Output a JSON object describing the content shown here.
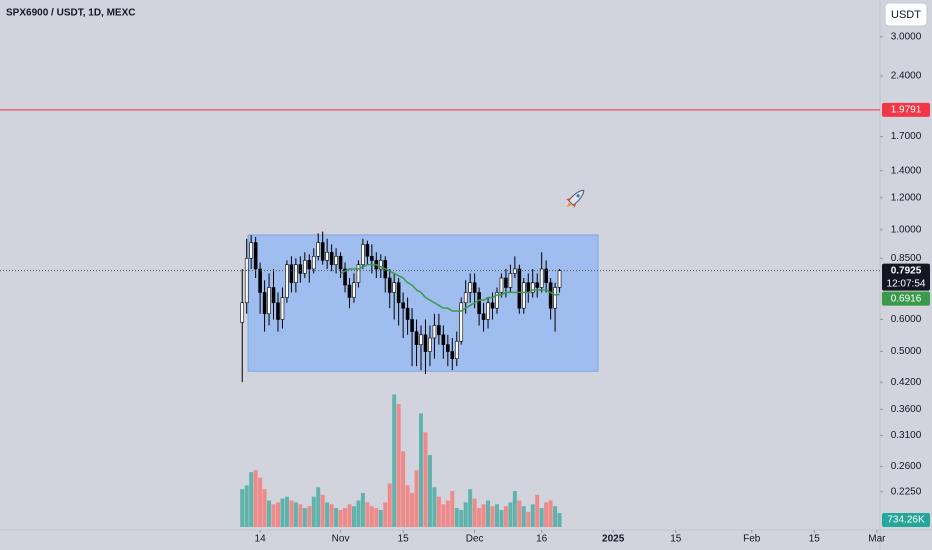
{
  "chart_data": {
    "type": "candlestick",
    "title": "SPX6900 / USDT, 1D, MEXC",
    "currency": "USDT",
    "log_scale": true,
    "background": "#d1d4dc",
    "up_color": "#ffffff",
    "down_color": "#000000",
    "volume_up_color": "#5fb3ac",
    "volume_down_color": "#ee8a8a",
    "xlim": [
      -44.2,
      152.7
    ],
    "xticks": [
      14,
      {
        "value": 32,
        "label": "Nov"
      },
      {
        "value": 46,
        "label": "15"
      },
      {
        "value": 62,
        "label": "Dec"
      },
      {
        "value": 77,
        "label": "16"
      },
      {
        "value": 93,
        "label": "2025"
      },
      {
        "value": 107,
        "label": "15"
      },
      {
        "value": 124,
        "label": "Feb"
      },
      {
        "value": 138,
        "label": "15"
      },
      {
        "value": 152,
        "label": "Mar"
      }
    ],
    "ylim": [
      0.181,
      3.7
    ],
    "yticks": [
      {
        "value": 3,
        "label": "3.0000"
      },
      {
        "value": 2.4,
        "label": "2.4000"
      },
      {
        "value": 1.7,
        "label": "1.7000"
      },
      {
        "value": 1.4,
        "label": "1.4000"
      },
      {
        "value": 1.2,
        "label": "1.2000"
      },
      {
        "value": 1,
        "label": "1.0000"
      },
      {
        "value": 0.85,
        "label": "0.8500"
      },
      {
        "value": 0.6,
        "label": "0.6000"
      },
      {
        "value": 0.5,
        "label": "0.5000"
      },
      {
        "value": 0.42,
        "label": "0.4200"
      },
      {
        "value": 0.36,
        "label": "0.3600"
      },
      {
        "value": 0.31,
        "label": "0.3100"
      },
      {
        "value": 0.26,
        "label": "0.2600"
      },
      {
        "value": 0.225,
        "label": "0.2250"
      }
    ],
    "vlim": [
      0,
      14000000
    ],
    "x": [
      10,
      11,
      12,
      13,
      14,
      15,
      16,
      17,
      18,
      19,
      20,
      21,
      22,
      23,
      24,
      25,
      26,
      27,
      28,
      29,
      30,
      31,
      32,
      33,
      34,
      35,
      36,
      37,
      38,
      39,
      40,
      41,
      42,
      43,
      44,
      45,
      46,
      47,
      48,
      49,
      50,
      51,
      52,
      53,
      54,
      55,
      56,
      57,
      58,
      59,
      60,
      61,
      62,
      63,
      64,
      65,
      66,
      67,
      68,
      69,
      70,
      71,
      72,
      73,
      74,
      75,
      76,
      77,
      78,
      79,
      80,
      81
    ],
    "open": [
      0.59,
      0.66,
      0.85,
      0.93,
      0.8,
      0.7,
      0.62,
      0.72,
      0.66,
      0.6,
      0.68,
      0.82,
      0.74,
      0.82,
      0.78,
      0.84,
      0.8,
      0.86,
      0.93,
      0.84,
      0.88,
      0.82,
      0.86,
      0.8,
      0.73,
      0.68,
      0.74,
      0.82,
      0.92,
      0.86,
      0.84,
      0.8,
      0.84,
      0.76,
      0.7,
      0.74,
      0.66,
      0.64,
      0.6,
      0.56,
      0.52,
      0.55,
      0.5,
      0.54,
      0.58,
      0.55,
      0.52,
      0.5,
      0.48,
      0.53,
      0.66,
      0.7,
      0.74,
      0.7,
      0.62,
      0.6,
      0.66,
      0.64,
      0.7,
      0.76,
      0.72,
      0.78,
      0.8,
      0.64,
      0.74,
      0.7,
      0.74,
      0.72,
      0.8,
      0.74,
      0.64,
      0.72
    ],
    "high": [
      0.8,
      0.95,
      0.97,
      0.96,
      0.83,
      0.75,
      0.78,
      0.8,
      0.7,
      0.72,
      0.84,
      0.86,
      0.85,
      0.86,
      0.88,
      0.87,
      0.9,
      0.98,
      0.99,
      0.95,
      0.92,
      0.9,
      0.88,
      0.83,
      0.76,
      0.78,
      0.84,
      0.95,
      0.94,
      0.92,
      0.88,
      0.87,
      0.86,
      0.8,
      0.78,
      0.76,
      0.7,
      0.68,
      0.64,
      0.6,
      0.58,
      0.6,
      0.58,
      0.62,
      0.62,
      0.58,
      0.55,
      0.54,
      0.56,
      0.68,
      0.75,
      0.78,
      0.78,
      0.72,
      0.66,
      0.68,
      0.7,
      0.72,
      0.78,
      0.8,
      0.82,
      0.86,
      0.82,
      0.76,
      0.78,
      0.8,
      0.78,
      0.88,
      0.84,
      0.76,
      0.74,
      0.8
    ],
    "low": [
      0.42,
      0.62,
      0.8,
      0.76,
      0.62,
      0.56,
      0.58,
      0.6,
      0.56,
      0.57,
      0.66,
      0.7,
      0.7,
      0.74,
      0.76,
      0.74,
      0.78,
      0.84,
      0.82,
      0.8,
      0.79,
      0.78,
      0.76,
      0.7,
      0.64,
      0.66,
      0.72,
      0.8,
      0.82,
      0.78,
      0.76,
      0.76,
      0.7,
      0.64,
      0.6,
      0.58,
      0.54,
      0.55,
      0.46,
      0.46,
      0.45,
      0.44,
      0.46,
      0.48,
      0.52,
      0.48,
      0.46,
      0.45,
      0.46,
      0.52,
      0.62,
      0.66,
      0.64,
      0.58,
      0.56,
      0.57,
      0.6,
      0.62,
      0.68,
      0.68,
      0.7,
      0.76,
      0.62,
      0.62,
      0.66,
      0.68,
      0.68,
      0.7,
      0.7,
      0.6,
      0.56,
      0.7
    ],
    "close": [
      0.66,
      0.85,
      0.93,
      0.8,
      0.7,
      0.62,
      0.72,
      0.66,
      0.6,
      0.68,
      0.82,
      0.74,
      0.82,
      0.78,
      0.84,
      0.8,
      0.86,
      0.93,
      0.84,
      0.88,
      0.82,
      0.86,
      0.8,
      0.73,
      0.68,
      0.74,
      0.82,
      0.92,
      0.86,
      0.84,
      0.8,
      0.84,
      0.76,
      0.7,
      0.74,
      0.66,
      0.64,
      0.6,
      0.56,
      0.52,
      0.55,
      0.5,
      0.54,
      0.58,
      0.55,
      0.52,
      0.5,
      0.48,
      0.53,
      0.66,
      0.7,
      0.74,
      0.7,
      0.62,
      0.6,
      0.66,
      0.64,
      0.7,
      0.76,
      0.72,
      0.78,
      0.8,
      0.64,
      0.74,
      0.7,
      0.74,
      0.72,
      0.8,
      0.74,
      0.64,
      0.72,
      0.7925
    ],
    "volume": [
      2000000,
      2200000,
      2900000,
      3000000,
      2600000,
      2000000,
      1400000,
      1200000,
      1300000,
      1500000,
      1600000,
      1400000,
      1300000,
      1200000,
      1000000,
      1100000,
      1600000,
      2100000,
      1700000,
      1300000,
      1200000,
      1000000,
      900000,
      1000000,
      1200000,
      1100000,
      1400000,
      1800000,
      1300000,
      1100000,
      1000000,
      900000,
      1300000,
      2300000,
      7000000,
      6500000,
      4000000,
      2200000,
      1800000,
      3000000,
      6000000,
      5000000,
      3800000,
      2100000,
      1600000,
      1200000,
      1400000,
      1900000,
      1000000,
      900000,
      1300000,
      2000000,
      1500000,
      1000000,
      1200000,
      1400000,
      1100000,
      1200000,
      900000,
      1100000,
      1300000,
      1900000,
      1400000,
      1100000,
      800000,
      1200000,
      1700000,
      1000000,
      1300000,
      1400000,
      1100000,
      734260
    ],
    "last_volume_label": "734.26K",
    "countdown": "12:07:54",
    "ma": {
      "color": "#3a9a4a",
      "values": [
        null,
        null,
        null,
        null,
        null,
        null,
        null,
        null,
        null,
        null,
        null,
        null,
        null,
        null,
        null,
        null,
        null,
        null,
        null,
        null,
        null,
        null,
        0.78,
        0.79,
        0.8,
        0.8,
        0.8,
        0.81,
        0.82,
        0.82,
        0.82,
        0.81,
        0.8,
        0.79,
        0.78,
        0.77,
        0.76,
        0.74,
        0.73,
        0.71,
        0.7,
        0.68,
        0.67,
        0.66,
        0.65,
        0.64,
        0.64,
        0.63,
        0.63,
        0.63,
        0.64,
        0.65,
        0.66,
        0.67,
        0.67,
        0.68,
        0.68,
        0.69,
        0.69,
        0.7,
        0.7,
        0.7,
        0.7,
        0.7,
        0.7,
        0.71,
        0.71,
        0.71,
        0.71,
        0.7,
        0.69,
        0.6916
      ]
    },
    "hline": {
      "value": 1.9791,
      "color": "#f23645"
    },
    "rectangle": {
      "x": [
        11.3,
        89.6
      ],
      "y": [
        0.447,
        0.971
      ],
      "fill": "#a0bdf0",
      "stroke": "#7da3e6"
    }
  }
}
